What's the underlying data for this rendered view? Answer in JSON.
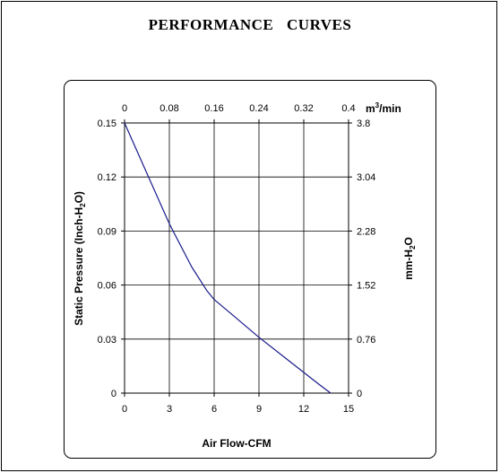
{
  "page": {
    "title": "PERFORMANCE    CURVES"
  },
  "chart_data": {
    "type": "line",
    "title": "PERFORMANCE    CURVES",
    "xlabel": "Air Flow-CFM",
    "ylabel": "Static Pressure (Inch-H2O)",
    "x2label": "m³/min",
    "y2label": "mm-H2O",
    "xlim": [
      0,
      15
    ],
    "ylim": [
      0,
      0.15
    ],
    "x_ticks": [
      "0",
      "3",
      "6",
      "9",
      "12",
      "15"
    ],
    "y_ticks": [
      "0",
      "0.03",
      "0.06",
      "0.09",
      "0.12",
      "0.15"
    ],
    "x2_ticks": [
      "0",
      "0.08",
      "0.16",
      "0.24",
      "0.32",
      "0.4"
    ],
    "y2_ticks": [
      "0",
      "0.76",
      "1.52",
      "2.28",
      "3.04",
      "3.8"
    ],
    "grid": true,
    "series": [
      {
        "color": "#1a1a8c",
        "x": [
          0,
          1.5,
          3,
          4.5,
          5.5,
          6,
          7,
          9,
          11,
          13,
          13.8
        ],
        "y": [
          0.15,
          0.122,
          0.094,
          0.07,
          0.057,
          0.052,
          0.045,
          0.031,
          0.018,
          0.005,
          0
        ]
      }
    ]
  }
}
